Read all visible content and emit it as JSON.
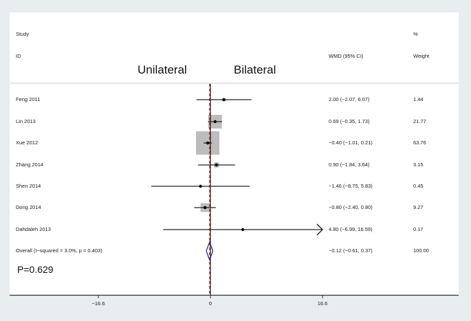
{
  "chart_data": {
    "type": "forest",
    "measure": "WMD (95% CI)",
    "headers": {
      "study_line1": "Study",
      "study_line2": "ID",
      "effect": "WMD (95% CI)",
      "weight_line1": "%",
      "weight_line2": "Weight"
    },
    "favours_left": "Unilateral",
    "favours_right": "Bilateral",
    "p_value_label": "P=0.629",
    "x_ticks": [
      -16.6,
      0,
      16.6
    ],
    "x_tick_labels": [
      "−16.6",
      "0",
      "16.6"
    ],
    "xlim": [
      -16.6,
      16.6
    ],
    "null_line": 0,
    "studies": [
      {
        "id": "Feng 2011",
        "wmd": 2.0,
        "lo": -2.07,
        "hi": 6.07,
        "weight": 1.44,
        "ci_text": "2.00 (−2.07, 6.07)",
        "weight_text": "1.44"
      },
      {
        "id": "Lin 2013",
        "wmd": 0.69,
        "lo": -0.35,
        "hi": 1.73,
        "weight": 21.77,
        "ci_text": "0.69 (−0.35, 1.73)",
        "weight_text": "21.77"
      },
      {
        "id": "Xue 2012",
        "wmd": -0.4,
        "lo": -1.01,
        "hi": 0.21,
        "weight": 63.76,
        "ci_text": "−0.40 (−1.01, 0.21)",
        "weight_text": "63.76"
      },
      {
        "id": "Zhang 2014",
        "wmd": 0.9,
        "lo": -1.84,
        "hi": 3.64,
        "weight": 3.15,
        "ci_text": "0.90 (−1.84, 3.64)",
        "weight_text": "3.15"
      },
      {
        "id": "Shen 2014",
        "wmd": -1.46,
        "lo": -8.75,
        "hi": 5.83,
        "weight": 0.45,
        "ci_text": "−1.46 (−8.75, 5.83)",
        "weight_text": "0.45"
      },
      {
        "id": "Dong 2014",
        "wmd": -0.8,
        "lo": -2.4,
        "hi": 0.8,
        "weight": 9.27,
        "ci_text": "−0.80 (−2.40, 0.80)",
        "weight_text": "9.27"
      },
      {
        "id": "Dahdaleh 2013",
        "wmd": 4.8,
        "lo": -6.99,
        "hi": 16.59,
        "weight": 0.17,
        "ci_text": "4.80 (−6.99, 16.59)",
        "weight_text": "0.17",
        "truncated_right": true
      }
    ],
    "overall": {
      "label": "Overall  (I−squared = 3.0%, p = 0.403)",
      "wmd": -0.12,
      "lo": -0.61,
      "hi": 0.37,
      "ci_text": "−0.12 (−0.61, 0.37)",
      "weight_text": "100.00"
    },
    "colors": {
      "frame": "#e8eef0",
      "box": "#bdbdbd",
      "line": "#222222",
      "overall_line": "#b03030",
      "diamond": "#2b2f6b"
    }
  }
}
